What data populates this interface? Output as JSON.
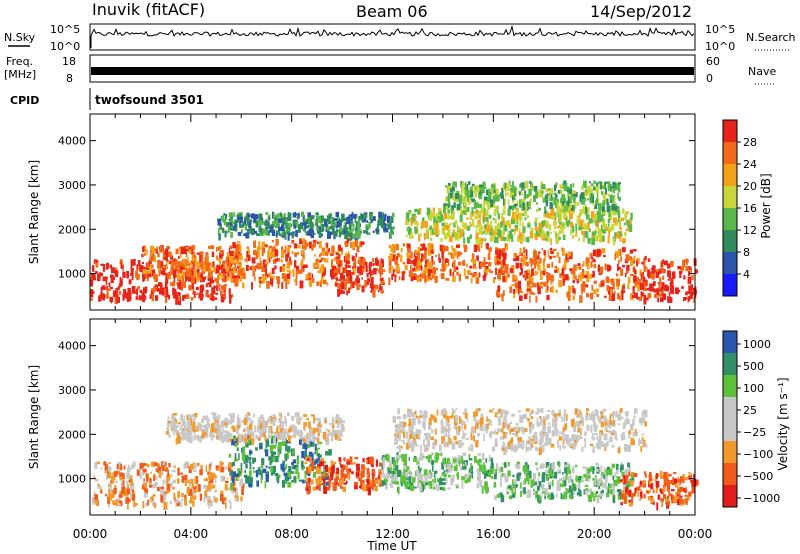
{
  "header": {
    "station": "Inuvik (fitACF)",
    "beam": "Beam 06",
    "date": "14/Sep/2012"
  },
  "panels": {
    "nsky_label": "N.Sky",
    "nsearch_label": "N.Search",
    "freq_label_1": "Freq.",
    "freq_label_2": "[MHz]",
    "nave_label": "Nave",
    "cpid_label": "CPID",
    "cpid_value": "twofsound 3501",
    "nsky_ticks": [
      "10^5",
      "10^0"
    ],
    "nsearch_ticks": [
      "10^5",
      "10^0"
    ],
    "freq_ticks": [
      "18",
      "8"
    ],
    "nave_ticks": [
      "60",
      "0"
    ]
  },
  "colors": {
    "power": [
      "#1a1aff",
      "#2a55aa",
      "#2f8a5c",
      "#58b84a",
      "#c9d63a",
      "#f4a11a",
      "#f26a18",
      "#e8241a"
    ],
    "velocity": [
      "#e21b1b",
      "#f15a1a",
      "#f19a2b",
      "#c8c8c8",
      "#c8c8c8",
      "#5cc23a",
      "#2f8f66",
      "#2a58b0"
    ]
  },
  "chart_data": [
    {
      "type": "heatmap",
      "name": "power",
      "xlabel": "",
      "ylabel": "Slant Range [km]",
      "xlim": [
        0,
        24
      ],
      "ylim": [
        180,
        4600
      ],
      "x_ticks": [
        "00:00",
        "04:00",
        "08:00",
        "12:00",
        "16:00",
        "20:00",
        "00:00"
      ],
      "y_ticks": [
        1000,
        2000,
        3000,
        4000
      ],
      "colorbar_label": "Power [dB]",
      "colorbar_ticks": [
        "4",
        "8",
        "12",
        "16",
        "20",
        "24",
        "28"
      ],
      "bands": [
        {
          "t0": 0.0,
          "t1": 5.6,
          "r0": 450,
          "r1": 1350,
          "level": 7
        },
        {
          "t0": 2.0,
          "t1": 6.0,
          "r0": 900,
          "r1": 1650,
          "level": 6
        },
        {
          "t0": 5.5,
          "t1": 10.8,
          "r0": 800,
          "r1": 1800,
          "level": 6
        },
        {
          "t0": 9.5,
          "t1": 11.6,
          "r0": 600,
          "r1": 1400,
          "level": 7
        },
        {
          "t0": 11.8,
          "t1": 16.5,
          "r0": 900,
          "r1": 1700,
          "level": 6
        },
        {
          "t0": 16.0,
          "t1": 22.0,
          "r0": 500,
          "r1": 1600,
          "level": 6
        },
        {
          "t0": 21.5,
          "t1": 24.0,
          "r0": 450,
          "r1": 1350,
          "level": 7
        },
        {
          "t0": 12.5,
          "t1": 21.5,
          "r0": 1800,
          "r1": 2500,
          "level": 4
        },
        {
          "t0": 14.0,
          "t1": 21.0,
          "r0": 2500,
          "r1": 3100,
          "level": 3
        },
        {
          "t0": 5.0,
          "t1": 12.0,
          "r0": 1900,
          "r1": 2400,
          "level": 2
        }
      ]
    },
    {
      "type": "heatmap",
      "name": "velocity",
      "xlabel": "Time UT",
      "ylabel": "Slant Range [km]",
      "xlim": [
        0,
        24
      ],
      "ylim": [
        180,
        4600
      ],
      "x_ticks": [
        "00:00",
        "04:00",
        "08:00",
        "12:00",
        "16:00",
        "20:00",
        "00:00"
      ],
      "y_ticks": [
        1000,
        2000,
        3000,
        4000
      ],
      "colorbar_label": "Velocity [m s⁻¹]",
      "colorbar_ticks": [
        "1000",
        "500",
        "100",
        "25",
        "−25",
        "−100",
        "−500",
        "−1000"
      ],
      "bands": [
        {
          "t0": 0.0,
          "t1": 6.0,
          "r0": 450,
          "r1": 1400,
          "level": 2
        },
        {
          "t0": 5.5,
          "t1": 9.5,
          "r0": 900,
          "r1": 2000,
          "level": 6
        },
        {
          "t0": 8.5,
          "t1": 11.5,
          "r0": 800,
          "r1": 1500,
          "level": 1
        },
        {
          "t0": 11.5,
          "t1": 16.0,
          "r0": 800,
          "r1": 1600,
          "level": 5
        },
        {
          "t0": 16.0,
          "t1": 21.5,
          "r0": 600,
          "r1": 1400,
          "level": 5
        },
        {
          "t0": 21.0,
          "t1": 24.0,
          "r0": 450,
          "r1": 1200,
          "level": 1
        },
        {
          "t0": 12.0,
          "t1": 22.0,
          "r0": 1700,
          "r1": 2600,
          "level": 3
        },
        {
          "t0": 3.0,
          "t1": 10.0,
          "r0": 1900,
          "r1": 2500,
          "level": 3
        }
      ]
    }
  ]
}
